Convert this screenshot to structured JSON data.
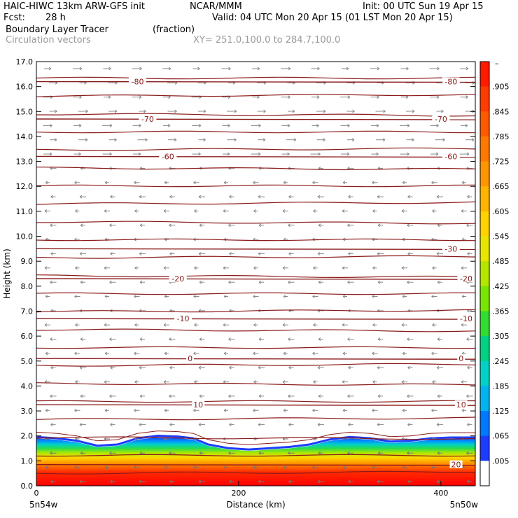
{
  "header": {
    "model": "HAIC-HIWC 13km ARW-GFS init",
    "org": "NCAR/MMM",
    "init": "Init: 00 UTC Sun 19 Apr 15",
    "fcst_label": "Fcst:",
    "fcst_value": "28 h",
    "valid": "Valid: 04 UTC Mon 20 Apr 15 (01 LST Mon 20 Apr 15)",
    "field": "Boundary Layer Tracer",
    "units": "(fraction)",
    "vectors": "Circulation vectors",
    "xy": "XY= 251.0,100.0 to 284.7,100.0"
  },
  "chart_data": {
    "type": "heatmap",
    "xlabel": "Distance (km)",
    "ylabel": "Height (km)",
    "xlim": [
      0,
      434
    ],
    "ylim": [
      0,
      17
    ],
    "x_ticks": [
      "0",
      "200",
      "400"
    ],
    "x_tick_values": [
      0,
      200,
      400
    ],
    "x_end_labels": [
      "5n54w",
      "5n50w"
    ],
    "y_ticks": [
      "0.0",
      "1.0",
      "2.0",
      "3.0",
      "4.0",
      "5.0",
      "6.0",
      "7.0",
      "8.0",
      "9.0",
      "10.0",
      "11.0",
      "12.0",
      "13.0",
      "14.0",
      "15.0",
      "16.0",
      "17.0"
    ],
    "tracer_top_km": [
      [
        0,
        1.9
      ],
      [
        20,
        1.85
      ],
      [
        40,
        1.75
      ],
      [
        60,
        1.55
      ],
      [
        80,
        1.6
      ],
      [
        100,
        1.85
      ],
      [
        120,
        1.95
      ],
      [
        140,
        1.92
      ],
      [
        155,
        1.85
      ],
      [
        170,
        1.6
      ],
      [
        190,
        1.45
      ],
      [
        210,
        1.4
      ],
      [
        230,
        1.45
      ],
      [
        250,
        1.5
      ],
      [
        270,
        1.6
      ],
      [
        290,
        1.8
      ],
      [
        310,
        1.9
      ],
      [
        330,
        1.85
      ],
      [
        350,
        1.72
      ],
      [
        370,
        1.75
      ],
      [
        390,
        1.85
      ],
      [
        410,
        1.88
      ],
      [
        434,
        1.88
      ]
    ],
    "isotherms": [
      {
        "label": "-80",
        "height_km": 16.2
      },
      {
        "label": "-70",
        "height_km": 14.7
      },
      {
        "label": "-60",
        "height_km": 13.2
      },
      {
        "label": "-30",
        "height_km": 9.5
      },
      {
        "label": "-20",
        "height_km": 8.3
      },
      {
        "label": "-10",
        "height_km": 6.7
      },
      {
        "label": "0",
        "height_km": 5.1
      },
      {
        "label": "10",
        "height_km": 3.25
      },
      {
        "label": "20",
        "height_km": 0.85
      }
    ],
    "isotherm_label_positions": [
      {
        "label": "-80",
        "x_km": [
          100,
          410
        ]
      },
      {
        "label": "-70",
        "x_km": [
          110,
          400
        ]
      },
      {
        "label": "-60",
        "x_km": [
          130,
          410
        ]
      },
      {
        "label": "-30",
        "x_km": [
          410
        ]
      },
      {
        "label": "-20",
        "x_km": [
          140,
          425
        ]
      },
      {
        "label": "-10",
        "x_km": [
          145,
          425
        ]
      },
      {
        "label": "0",
        "x_km": [
          152,
          420
        ]
      },
      {
        "label": "10",
        "x_km": [
          160,
          420
        ]
      },
      {
        "label": "20",
        "x_km": [
          415
        ]
      }
    ],
    "colorbar": {
      "labels": [
        ".905",
        ".845",
        ".785",
        ".725",
        ".665",
        ".605",
        ".545",
        ".485",
        ".425",
        ".365",
        ".305",
        ".245",
        ".185",
        ".125",
        ".065",
        ".005"
      ],
      "colors": [
        "#ff1a00",
        "#ff3c00",
        "#ff5a00",
        "#ff7800",
        "#ff9600",
        "#ffb400",
        "#ffd200",
        "#e6e600",
        "#b4e600",
        "#78e600",
        "#32dc32",
        "#00d282",
        "#00d2c8",
        "#00b4f0",
        "#0078ff",
        "#1e3cff",
        "#ffffff"
      ],
      "top_label": "–"
    },
    "wind_field": {
      "upper_direction": "eastward",
      "lower_direction": "westward",
      "reversal_height_km": 13.0
    }
  }
}
